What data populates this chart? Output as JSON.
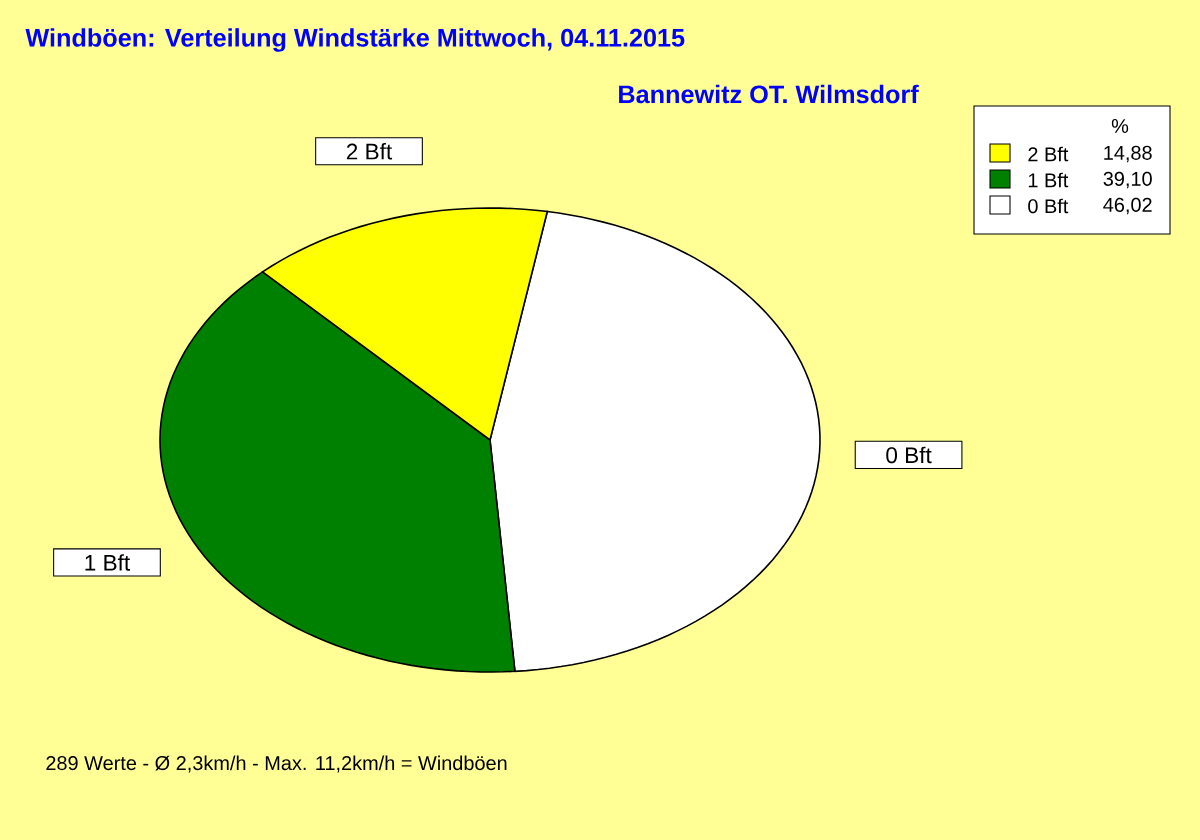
{
  "chart_data": {
    "type": "pie",
    "title": "Windböen: Verteilung Windstärke  Mittwoch, 04.11.2015",
    "subtitle": "Bannewitz OT. Wilmsdorf",
    "legend_title": "%",
    "categories": [
      "0 Bft",
      "1 Bft",
      "2 Bft"
    ],
    "values": [
      46.02,
      39.1,
      14.88
    ],
    "colors": [
      "#ffffff",
      "#008000",
      "#ffff00"
    ],
    "value_labels": [
      "46,02",
      "39,10",
      "14,88"
    ],
    "legend": "top right",
    "annotations": [
      "289 Werte   -   Ø 2,3km/h   -   Max. 11,2km/h = Windböen"
    ]
  }
}
